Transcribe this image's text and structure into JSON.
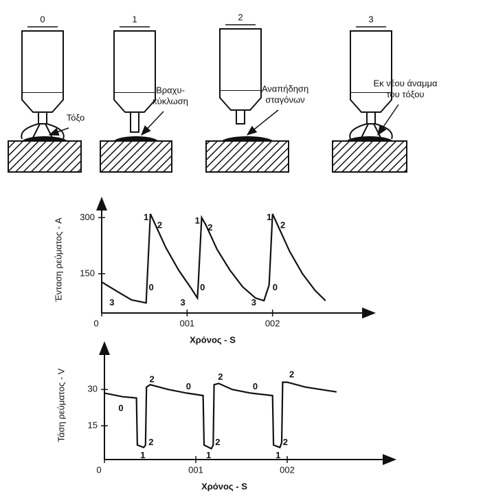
{
  "diagram": {
    "stages": [
      {
        "number": "0",
        "label": [
          "Τόξο"
        ]
      },
      {
        "number": "1",
        "label": [
          "Βραχυ-",
          "κύκλωση"
        ]
      },
      {
        "number": "2",
        "label": [
          "Αναπήδηση",
          "σταγόνων"
        ]
      },
      {
        "number": "3",
        "label": [
          "Εκ νέου άναμμα",
          "του τόξου"
        ]
      }
    ]
  },
  "chart_data": [
    {
      "type": "line",
      "ylabel": "Ένταση ρεύματος - A",
      "xlabel": "Χρόνος - S",
      "color": "#111",
      "xlim": [
        0,
        0.03
      ],
      "ylim": [
        45,
        330
      ],
      "xticks": [
        0,
        {
          "value": 0.01,
          "label": "001"
        },
        {
          "value": 0.02,
          "label": "002"
        }
      ],
      "yticks": [
        150,
        300
      ],
      "x": [
        0,
        0.002,
        0.0035,
        0.0052,
        0.0053,
        0.0057,
        0.0062,
        0.0075,
        0.009,
        0.0105,
        0.0112,
        0.0113,
        0.0117,
        0.0122,
        0.0135,
        0.015,
        0.0165,
        0.018,
        0.019,
        0.0196,
        0.02,
        0.0205,
        0.022,
        0.0235,
        0.025,
        0.0262
      ],
      "values": [
        128,
        100,
        80,
        72,
        120,
        310,
        285,
        220,
        160,
        110,
        85,
        120,
        300,
        280,
        215,
        160,
        115,
        85,
        78,
        120,
        310,
        285,
        210,
        150,
        105,
        78
      ],
      "annotations": [
        {
          "text": "3",
          "x": 0.0012,
          "y": 72
        },
        {
          "text": "0",
          "x": 0.0058,
          "y": 112
        },
        {
          "text": "1",
          "x": 0.0052,
          "y": 300
        },
        {
          "text": "2",
          "x": 0.0068,
          "y": 278
        },
        {
          "text": "3",
          "x": 0.0095,
          "y": 72
        },
        {
          "text": "0",
          "x": 0.0118,
          "y": 112
        },
        {
          "text": "1",
          "x": 0.0112,
          "y": 290
        },
        {
          "text": "2",
          "x": 0.0127,
          "y": 272
        },
        {
          "text": "3",
          "x": 0.0178,
          "y": 72
        },
        {
          "text": "0",
          "x": 0.0203,
          "y": 112
        },
        {
          "text": "1",
          "x": 0.0196,
          "y": 300
        },
        {
          "text": "2",
          "x": 0.0212,
          "y": 278
        }
      ]
    },
    {
      "type": "line",
      "ylabel": "Τάση ρεύματος - V",
      "xlabel": "Χρόνος - S",
      "color": "#111",
      "xlim": [
        0,
        0.03
      ],
      "ylim": [
        1,
        46
      ],
      "xticks": [
        0,
        {
          "value": 0.01,
          "label": "001"
        },
        {
          "value": 0.02,
          "label": "002"
        }
      ],
      "yticks": [
        15,
        30
      ],
      "x": [
        0,
        0.002,
        0.0035,
        0.0036,
        0.0043,
        0.0045,
        0.0046,
        0.005,
        0.007,
        0.009,
        0.0108,
        0.0109,
        0.0117,
        0.0119,
        0.012,
        0.0125,
        0.014,
        0.016,
        0.0184,
        0.0185,
        0.0192,
        0.0194,
        0.0195,
        0.02,
        0.022,
        0.0254
      ],
      "values": [
        28.5,
        27,
        26.5,
        7,
        6,
        7,
        31,
        32,
        30,
        28.5,
        27.5,
        7,
        5.5,
        7,
        32,
        32.5,
        30,
        28.5,
        27.5,
        7,
        6,
        8,
        33,
        33,
        31,
        29
      ],
      "annotations": [
        {
          "text": "0",
          "x": 0.0018,
          "y": 22
        },
        {
          "text": "1",
          "x": 0.0042,
          "y": 2.5
        },
        {
          "text": "2",
          "x": 0.0051,
          "y": 8
        },
        {
          "text": "2",
          "x": 0.0052,
          "y": 34
        },
        {
          "text": "0",
          "x": 0.0092,
          "y": 31
        },
        {
          "text": "1",
          "x": 0.0114,
          "y": 2.5
        },
        {
          "text": "2",
          "x": 0.0124,
          "y": 8
        },
        {
          "text": "2",
          "x": 0.0127,
          "y": 35
        },
        {
          "text": "0",
          "x": 0.0165,
          "y": 31
        },
        {
          "text": "1",
          "x": 0.019,
          "y": 2.5
        },
        {
          "text": "2",
          "x": 0.0198,
          "y": 8
        },
        {
          "text": "2",
          "x": 0.0205,
          "y": 36
        }
      ]
    }
  ]
}
